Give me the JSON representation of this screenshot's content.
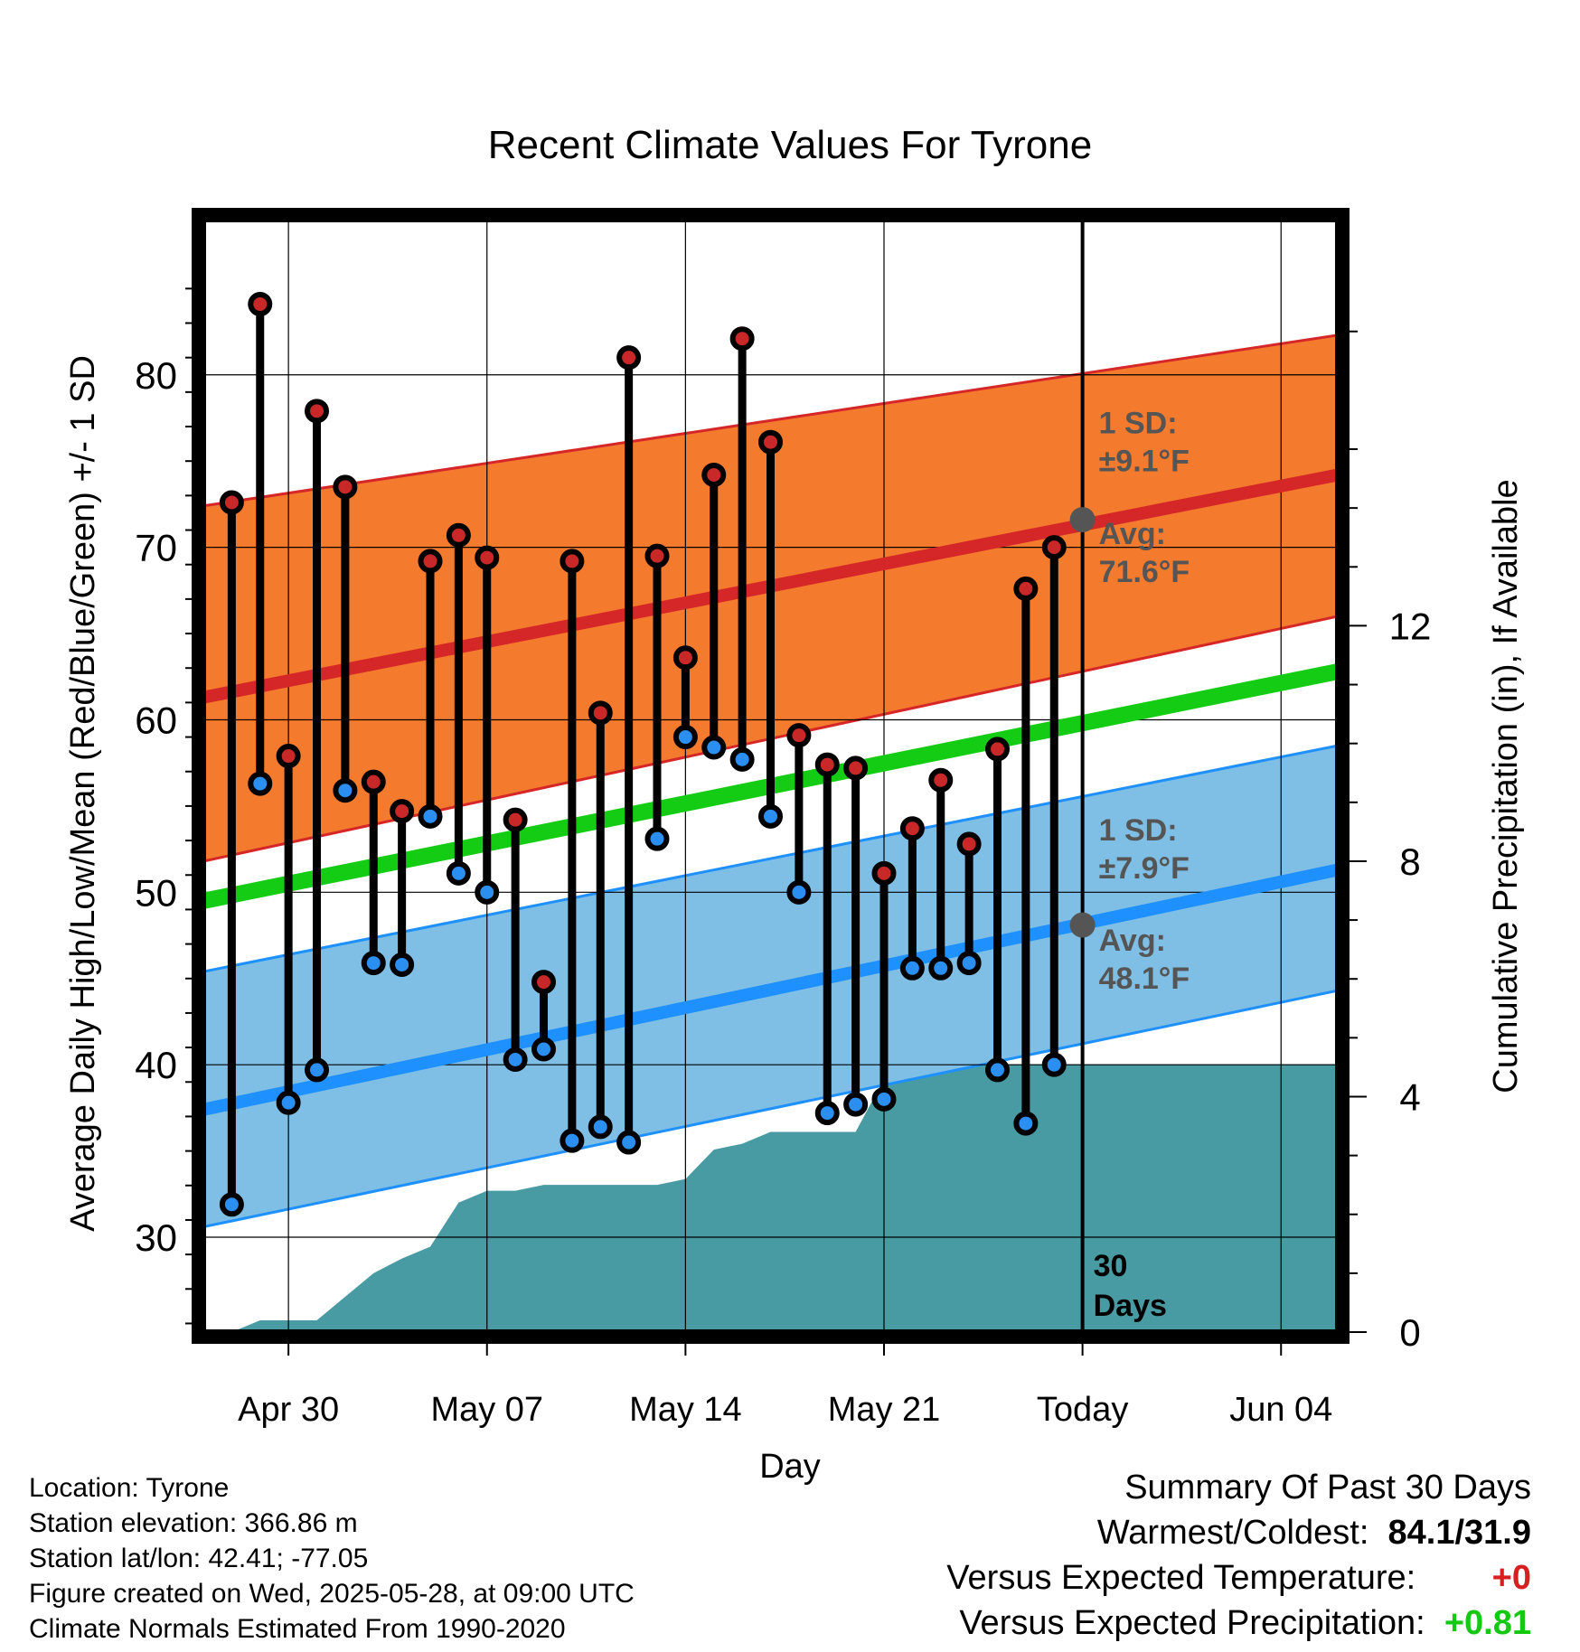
{
  "chart_data": {
    "type": "line",
    "title": "Recent Climate Values For Tyrone",
    "xlabel": "Day",
    "ylabel": "Average Daily High/Low/Mean (Red/Blue/Green) +/- 1 SD",
    "y2label": "Cumulative Precipitation (in), If Available",
    "x_range": [
      "2025-04-27",
      "2025-06-06"
    ],
    "ylim": [
      24.5,
      89
    ],
    "y2lim": [
      0,
      18.9
    ],
    "x_ticks": [
      {
        "date": "2025-04-30",
        "label": "Apr 30"
      },
      {
        "date": "2025-05-07",
        "label": "May 07"
      },
      {
        "date": "2025-05-14",
        "label": "May 14"
      },
      {
        "date": "2025-05-21",
        "label": "May 21"
      },
      {
        "date": "2025-05-28",
        "label": "Today"
      },
      {
        "date": "2025-06-04",
        "label": "Jun 04"
      }
    ],
    "y_ticks": [
      "30",
      "40",
      "50",
      "60",
      "70",
      "80"
    ],
    "y2_ticks": [
      "0",
      "4",
      "8",
      "12"
    ],
    "grid": true,
    "today": {
      "date": "2025-05-28",
      "label_line1": "30",
      "label_line2": "Days"
    },
    "normals": {
      "high_avg": {
        "start": 61.3,
        "end": 74.2,
        "color": "#d62728"
      },
      "high_band": {
        "lower_start": 51.8,
        "lower_end": 66.0,
        "upper_start": 72.4,
        "upper_end": 82.3,
        "color": "#f47a2e"
      },
      "low_avg": {
        "start": 37.4,
        "end": 51.3,
        "color": "#1e90ff"
      },
      "low_band": {
        "lower_start": 30.6,
        "lower_end": 44.3,
        "upper_start": 45.4,
        "upper_end": 58.5,
        "color": "#7fbfe6"
      },
      "mean_avg": {
        "start": 49.5,
        "end": 62.8,
        "color": "#14cc14"
      }
    },
    "annotations": {
      "high_sd": {
        "line1": "1 SD:",
        "line2": "±9.1°F",
        "y": 76.6
      },
      "high_avg": {
        "line1": "Avg:",
        "line2": "71.6°F",
        "y": 70.2,
        "point": 71.6
      },
      "low_sd": {
        "line1": "1 SD:",
        "line2": "±7.9°F",
        "y": 53.0
      },
      "low_avg": {
        "line1": "Avg:",
        "line2": "48.1°F",
        "y": 46.6,
        "point": 48.1
      },
      "color": "#555555"
    },
    "daily": {
      "dates": [
        "2025-04-28",
        "2025-04-29",
        "2025-04-30",
        "2025-05-01",
        "2025-05-02",
        "2025-05-03",
        "2025-05-04",
        "2025-05-05",
        "2025-05-06",
        "2025-05-07",
        "2025-05-08",
        "2025-05-09",
        "2025-05-10",
        "2025-05-11",
        "2025-05-12",
        "2025-05-13",
        "2025-05-14",
        "2025-05-15",
        "2025-05-16",
        "2025-05-17",
        "2025-05-18",
        "2025-05-19",
        "2025-05-20",
        "2025-05-21",
        "2025-05-22",
        "2025-05-23",
        "2025-05-24",
        "2025-05-25",
        "2025-05-26",
        "2025-05-27"
      ],
      "high": [
        72.6,
        84.1,
        57.9,
        77.9,
        73.5,
        56.4,
        54.7,
        69.2,
        70.7,
        69.4,
        54.2,
        44.8,
        69.2,
        60.4,
        81.0,
        69.5,
        63.6,
        74.2,
        82.1,
        76.1,
        59.1,
        57.4,
        57.2,
        51.1,
        53.7,
        56.5,
        52.8,
        58.3,
        67.6,
        70.0
      ],
      "low": [
        31.9,
        56.3,
        37.8,
        39.7,
        55.9,
        45.9,
        45.8,
        54.4,
        51.1,
        50.0,
        40.3,
        40.9,
        35.6,
        36.4,
        35.5,
        53.1,
        59.0,
        58.4,
        57.7,
        54.4,
        50.0,
        37.2,
        37.7,
        38.0,
        45.6,
        45.6,
        45.9,
        39.7,
        36.6,
        40.0
      ],
      "high_color": "#c82828",
      "low_color": "#2a8ff0"
    },
    "precip": {
      "color": "#489ba3",
      "dates": [
        "2025-04-27",
        "2025-04-28",
        "2025-04-29",
        "2025-05-01",
        "2025-05-02",
        "2025-05-03",
        "2025-05-04",
        "2025-05-05",
        "2025-05-06",
        "2025-05-07",
        "2025-05-08",
        "2025-05-09",
        "2025-05-13",
        "2025-05-14",
        "2025-05-15",
        "2025-05-16",
        "2025-05-17",
        "2025-05-19",
        "2025-05-20",
        "2025-05-21",
        "2025-05-22",
        "2025-05-24",
        "2025-05-25",
        "2025-06-06"
      ],
      "cum": [
        0.0,
        0.0,
        0.2,
        0.2,
        0.6,
        1.0,
        1.25,
        1.45,
        2.2,
        2.4,
        2.4,
        2.5,
        2.5,
        2.6,
        3.1,
        3.2,
        3.4,
        3.4,
        3.4,
        4.3,
        4.4,
        4.5,
        4.55,
        4.55
      ]
    }
  },
  "info": {
    "location": "Location: Tyrone",
    "elevation": "Station elevation: 366.86 m",
    "latlon": "Station lat/lon: 42.41; -77.05",
    "created": "Figure created on Wed, 2025-05-28, at 09:00 UTC",
    "normals": "Climate Normals Estimated From 1990-2020"
  },
  "summary": {
    "title": "Summary Of Past 30 Days",
    "warmest_label": "Warmest/Coldest:",
    "warmest_value": "84.1/31.9",
    "temp_label": "Versus Expected Temperature:",
    "temp_value": "+0",
    "temp_color": "#d62020",
    "precip_label": "Versus Expected Precipitation:",
    "precip_value": "+0.81",
    "precip_color": "#14c814"
  }
}
